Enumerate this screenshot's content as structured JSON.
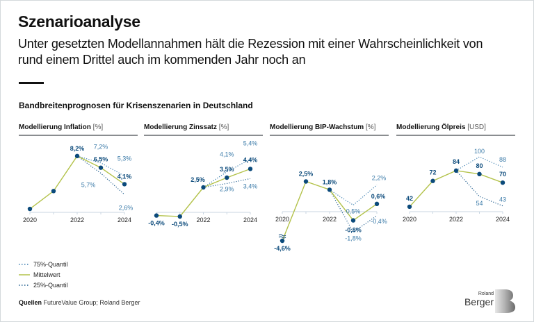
{
  "header": {
    "title": "Szenarioanalyse",
    "subtitle": "Unter gesetzten Modellannahmen hält die Rezession mit einer Wahrscheinlichkeit von rund einem Drittel auch im kommenden Jahr noch an",
    "section_title": "Bandbreitenprognosen für Krisenszenarien in Deutschland"
  },
  "colors": {
    "mean_line": "#b3c24a",
    "point": "#0b4a7b",
    "quantile_75": "#3d7fb0",
    "quantile_25": "#1f5d8e",
    "quantile_label": "#3a7aa8",
    "axis": "#c9d6e2"
  },
  "legend": {
    "q75": "75%-Quantil",
    "mean": "Mittelwert",
    "q25": "25%-Quantil"
  },
  "source": {
    "label": "Quellen",
    "text": "FutureValue Group; Roland Berger"
  },
  "logo": {
    "small": "Roland",
    "big": "Berger"
  },
  "chart_data": [
    {
      "type": "line",
      "title": "Modellierung Inflation",
      "unit": "[%]",
      "x": [
        2020,
        2021,
        2022,
        2023,
        2024
      ],
      "x_tick_labels": [
        "2020",
        "",
        "2022",
        "",
        "2024"
      ],
      "series": [
        {
          "name": "Mittelwert",
          "values": [
            0.5,
            3.1,
            8.2,
            6.5,
            4.1
          ],
          "labels": [
            "",
            "",
            "8,2%",
            "6,5%",
            "4,1%"
          ]
        },
        {
          "name": "75%-Quantil",
          "values": [
            null,
            null,
            8.2,
            7.2,
            5.3
          ],
          "labels": [
            "",
            "",
            "",
            "7,2%",
            "5,3%"
          ]
        },
        {
          "name": "25%-Quantil",
          "values": [
            null,
            null,
            8.2,
            5.7,
            2.6
          ],
          "labels": [
            "",
            "",
            "",
            "5,7%",
            "2,6%"
          ]
        }
      ],
      "ylim": [
        0,
        9.5
      ]
    },
    {
      "type": "line",
      "title": "Modellierung Zinssatz",
      "unit": "[%]",
      "x": [
        2020,
        2021,
        2022,
        2023,
        2024
      ],
      "x_tick_labels": [
        "",
        "",
        "2022",
        "",
        "2024"
      ],
      "series": [
        {
          "name": "Mittelwert",
          "values": [
            -0.4,
            -0.5,
            2.5,
            3.5,
            4.4
          ],
          "labels": [
            "-0,4%",
            "-0,5%",
            "2,5%",
            "3,5%",
            "4,4%"
          ]
        },
        {
          "name": "75%-Quantil",
          "values": [
            null,
            null,
            2.5,
            4.1,
            5.4
          ],
          "labels": [
            "",
            "",
            "",
            "4,1%",
            "5,4%"
          ]
        },
        {
          "name": "25%-Quantil",
          "values": [
            null,
            null,
            2.5,
            2.9,
            3.4
          ],
          "labels": [
            "",
            "",
            "",
            "2,9%",
            "3,4%"
          ]
        }
      ],
      "ylim": [
        -0.6,
        6
      ]
    },
    {
      "type": "line",
      "title": "Modellierung BIP-Wachstum",
      "unit": "[%]",
      "x": [
        2020,
        2021,
        2022,
        2023,
        2024
      ],
      "x_tick_labels": [
        "2020",
        "",
        "2022",
        "",
        ""
      ],
      "axis_break": true,
      "series": [
        {
          "name": "Mittelwert",
          "values": [
            -4.6,
            2.5,
            1.8,
            -0.8,
            0.6
          ],
          "labels": [
            "-4,6%",
            "2,5%",
            "1,8%",
            "-0,8%",
            "0,6%"
          ]
        },
        {
          "name": "75%-Quantil",
          "values": [
            null,
            null,
            1.8,
            0.5,
            2.2
          ],
          "labels": [
            "",
            "",
            "",
            "0,5%",
            "2,2%"
          ]
        },
        {
          "name": "25%-Quantil",
          "values": [
            null,
            null,
            1.8,
            -1.8,
            -0.4
          ],
          "labels": [
            "",
            "",
            "",
            "-1,8%",
            "-0,4%"
          ]
        }
      ],
      "ylim": [
        -2.5,
        3.5
      ]
    },
    {
      "type": "line",
      "title": "Modellierung Ölpreis",
      "unit": "[USD]",
      "x": [
        2020,
        2021,
        2022,
        2023,
        2024
      ],
      "x_tick_labels": [
        "2020",
        "",
        "2022",
        "",
        "2024"
      ],
      "series": [
        {
          "name": "Mittelwert",
          "values": [
            42,
            72,
            84,
            80,
            70
          ],
          "labels": [
            "42",
            "72",
            "84",
            "80",
            "70"
          ]
        },
        {
          "name": "75%-Quantil",
          "values": [
            null,
            null,
            84,
            100,
            88
          ],
          "labels": [
            "",
            "",
            "",
            "100",
            "88"
          ]
        },
        {
          "name": "25%-Quantil",
          "values": [
            null,
            null,
            84,
            54,
            43
          ],
          "labels": [
            "",
            "",
            "",
            "54",
            "43"
          ]
        }
      ],
      "ylim": [
        36,
        110
      ]
    }
  ]
}
